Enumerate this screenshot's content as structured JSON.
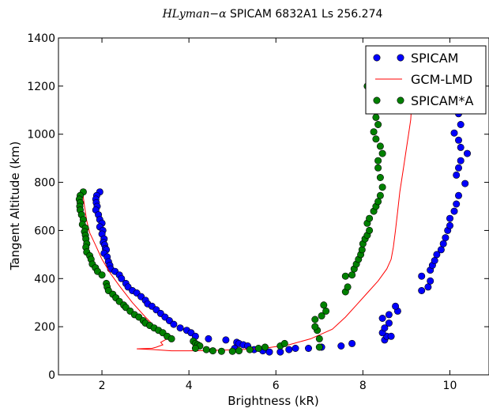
{
  "chart_data": {
    "type": "scatter",
    "title_math": "HLyman−α",
    "title_rest": " SPICAM 6832A1 Ls 256.274",
    "xlabel": "Brightness (kR)",
    "ylabel": "Tangent Altitude (km)",
    "xlim": [
      1,
      10.9
    ],
    "ylim": [
      0,
      1400
    ],
    "xticks": [
      2,
      4,
      6,
      8,
      10
    ],
    "yticks": [
      0,
      200,
      400,
      600,
      800,
      1000,
      1200,
      1400
    ],
    "grid": false,
    "legend_position": "top-right",
    "series": [
      {
        "name": "SPICAM",
        "kind": "scatter",
        "color": "#0000ff",
        "points": [
          [
            1.95,
            760
          ],
          [
            1.88,
            745
          ],
          [
            1.86,
            730
          ],
          [
            1.87,
            715
          ],
          [
            1.89,
            700
          ],
          [
            1.86,
            685
          ],
          [
            1.92,
            665
          ],
          [
            1.95,
            645
          ],
          [
            2.0,
            630
          ],
          [
            1.95,
            615
          ],
          [
            2.02,
            600
          ],
          [
            2.0,
            585
          ],
          [
            2.05,
            565
          ],
          [
            2.03,
            550
          ],
          [
            2.06,
            540
          ],
          [
            2.08,
            525
          ],
          [
            2.1,
            520
          ],
          [
            2.05,
            505
          ],
          [
            2.12,
            490
          ],
          [
            2.15,
            470
          ],
          [
            2.18,
            455
          ],
          [
            2.2,
            440
          ],
          [
            2.3,
            430
          ],
          [
            2.4,
            415
          ],
          [
            2.45,
            400
          ],
          [
            2.55,
            380
          ],
          [
            2.6,
            365
          ],
          [
            2.7,
            350
          ],
          [
            2.8,
            340
          ],
          [
            2.9,
            325
          ],
          [
            3.0,
            310
          ],
          [
            3.05,
            295
          ],
          [
            3.15,
            285
          ],
          [
            3.25,
            270
          ],
          [
            3.35,
            255
          ],
          [
            3.45,
            240
          ],
          [
            3.55,
            225
          ],
          [
            3.65,
            210
          ],
          [
            3.8,
            195
          ],
          [
            3.95,
            185
          ],
          [
            4.05,
            175
          ],
          [
            4.15,
            160
          ],
          [
            4.45,
            150
          ],
          [
            4.85,
            145
          ],
          [
            5.1,
            135
          ],
          [
            5.15,
            130
          ],
          [
            5.25,
            125
          ],
          [
            5.35,
            120
          ],
          [
            5.05,
            110
          ],
          [
            5.5,
            105
          ],
          [
            5.7,
            100
          ],
          [
            5.85,
            95
          ],
          [
            6.1,
            95
          ],
          [
            6.3,
            105
          ],
          [
            6.45,
            110
          ],
          [
            6.75,
            110
          ],
          [
            7.05,
            115
          ],
          [
            7.5,
            120
          ],
          [
            7.75,
            130
          ],
          [
            8.5,
            145
          ],
          [
            8.55,
            160
          ],
          [
            8.65,
            160
          ],
          [
            8.45,
            175
          ],
          [
            8.5,
            195
          ],
          [
            8.6,
            215
          ],
          [
            8.45,
            235
          ],
          [
            8.6,
            250
          ],
          [
            8.8,
            265
          ],
          [
            8.75,
            285
          ],
          [
            9.35,
            350
          ],
          [
            9.5,
            365
          ],
          [
            9.55,
            390
          ],
          [
            9.35,
            410
          ],
          [
            9.55,
            435
          ],
          [
            9.6,
            455
          ],
          [
            9.65,
            475
          ],
          [
            9.7,
            500
          ],
          [
            9.8,
            520
          ],
          [
            9.85,
            545
          ],
          [
            9.9,
            570
          ],
          [
            9.95,
            600
          ],
          [
            10.0,
            620
          ],
          [
            10.0,
            650
          ],
          [
            10.1,
            680
          ],
          [
            10.15,
            710
          ],
          [
            10.2,
            745
          ],
          [
            10.35,
            795
          ],
          [
            10.15,
            830
          ],
          [
            10.2,
            860
          ],
          [
            10.25,
            890
          ],
          [
            10.4,
            920
          ],
          [
            10.25,
            945
          ],
          [
            10.2,
            975
          ],
          [
            10.1,
            1005
          ],
          [
            10.25,
            1040
          ],
          [
            10.2,
            1085
          ]
        ]
      },
      {
        "name": "GCM-LMD",
        "kind": "line",
        "color": "#ff0000",
        "points": [
          [
            1.55,
            765
          ],
          [
            1.6,
            700
          ],
          [
            1.65,
            640
          ],
          [
            1.72,
            590
          ],
          [
            1.85,
            540
          ],
          [
            2.0,
            480
          ],
          [
            2.2,
            420
          ],
          [
            2.4,
            370
          ],
          [
            2.7,
            300
          ],
          [
            3.0,
            240
          ],
          [
            3.3,
            185
          ],
          [
            3.5,
            150
          ],
          [
            3.35,
            135
          ],
          [
            3.4,
            125
          ],
          [
            3.25,
            115
          ],
          [
            3.15,
            110
          ],
          [
            2.8,
            108
          ],
          [
            3.2,
            105
          ],
          [
            3.6,
            100
          ],
          [
            4.0,
            100
          ],
          [
            4.6,
            102
          ],
          [
            5.2,
            105
          ],
          [
            5.8,
            112
          ],
          [
            6.3,
            125
          ],
          [
            6.8,
            150
          ],
          [
            7.3,
            190
          ],
          [
            7.6,
            240
          ],
          [
            7.85,
            290
          ],
          [
            8.1,
            340
          ],
          [
            8.35,
            390
          ],
          [
            8.55,
            440
          ],
          [
            8.65,
            480
          ],
          [
            8.7,
            530
          ],
          [
            8.75,
            600
          ],
          [
            8.8,
            680
          ],
          [
            8.85,
            760
          ],
          [
            8.9,
            820
          ],
          [
            8.95,
            880
          ],
          [
            9.0,
            940
          ],
          [
            9.05,
            1000
          ],
          [
            9.1,
            1060
          ],
          [
            9.12,
            1120
          ],
          [
            9.13,
            1180
          ],
          [
            9.14,
            1220
          ]
        ]
      },
      {
        "name": "SPICAM*A",
        "kind": "scatter",
        "color": "#008000",
        "points": [
          [
            1.57,
            760
          ],
          [
            1.5,
            745
          ],
          [
            1.48,
            730
          ],
          [
            1.5,
            715
          ],
          [
            1.49,
            700
          ],
          [
            1.5,
            685
          ],
          [
            1.53,
            665
          ],
          [
            1.57,
            645
          ],
          [
            1.55,
            625
          ],
          [
            1.62,
            610
          ],
          [
            1.6,
            595
          ],
          [
            1.62,
            580
          ],
          [
            1.63,
            565
          ],
          [
            1.65,
            545
          ],
          [
            1.63,
            530
          ],
          [
            1.65,
            510
          ],
          [
            1.72,
            495
          ],
          [
            1.75,
            480
          ],
          [
            1.78,
            460
          ],
          [
            1.85,
            445
          ],
          [
            1.9,
            430
          ],
          [
            2.0,
            415
          ],
          [
            2.1,
            380
          ],
          [
            2.12,
            365
          ],
          [
            2.15,
            350
          ],
          [
            2.25,
            335
          ],
          [
            2.32,
            320
          ],
          [
            2.4,
            305
          ],
          [
            2.5,
            290
          ],
          [
            2.55,
            280
          ],
          [
            2.65,
            265
          ],
          [
            2.75,
            250
          ],
          [
            2.85,
            240
          ],
          [
            2.95,
            225
          ],
          [
            3.0,
            215
          ],
          [
            3.1,
            205
          ],
          [
            3.2,
            195
          ],
          [
            3.3,
            185
          ],
          [
            3.4,
            175
          ],
          [
            3.5,
            160
          ],
          [
            3.6,
            150
          ],
          [
            4.1,
            140
          ],
          [
            4.15,
            130
          ],
          [
            4.2,
            125
          ],
          [
            4.25,
            120
          ],
          [
            4.15,
            110
          ],
          [
            4.4,
            105
          ],
          [
            4.55,
            100
          ],
          [
            4.75,
            98
          ],
          [
            5.0,
            98
          ],
          [
            5.15,
            100
          ],
          [
            5.4,
            105
          ],
          [
            5.6,
            110
          ],
          [
            5.75,
            115
          ],
          [
            6.1,
            120
          ],
          [
            6.2,
            130
          ],
          [
            7.0,
            115
          ],
          [
            7.0,
            150
          ],
          [
            6.95,
            185
          ],
          [
            6.9,
            200
          ],
          [
            6.9,
            230
          ],
          [
            7.05,
            245
          ],
          [
            7.15,
            265
          ],
          [
            7.1,
            290
          ],
          [
            7.6,
            345
          ],
          [
            7.65,
            365
          ],
          [
            7.6,
            410
          ],
          [
            7.75,
            415
          ],
          [
            7.8,
            440
          ],
          [
            7.85,
            460
          ],
          [
            7.9,
            480
          ],
          [
            7.95,
            500
          ],
          [
            7.98,
            520
          ],
          [
            8.0,
            545
          ],
          [
            8.05,
            565
          ],
          [
            8.1,
            580
          ],
          [
            8.15,
            600
          ],
          [
            8.1,
            630
          ],
          [
            8.15,
            650
          ],
          [
            8.25,
            680
          ],
          [
            8.3,
            700
          ],
          [
            8.35,
            720
          ],
          [
            8.4,
            745
          ],
          [
            8.45,
            780
          ],
          [
            8.4,
            820
          ],
          [
            8.35,
            860
          ],
          [
            8.35,
            890
          ],
          [
            8.45,
            920
          ],
          [
            8.4,
            950
          ],
          [
            8.3,
            980
          ],
          [
            8.25,
            1010
          ],
          [
            8.35,
            1040
          ],
          [
            8.3,
            1070
          ],
          [
            8.3,
            1100
          ],
          [
            8.25,
            1135
          ],
          [
            8.2,
            1165
          ],
          [
            8.1,
            1200
          ]
        ]
      }
    ]
  }
}
